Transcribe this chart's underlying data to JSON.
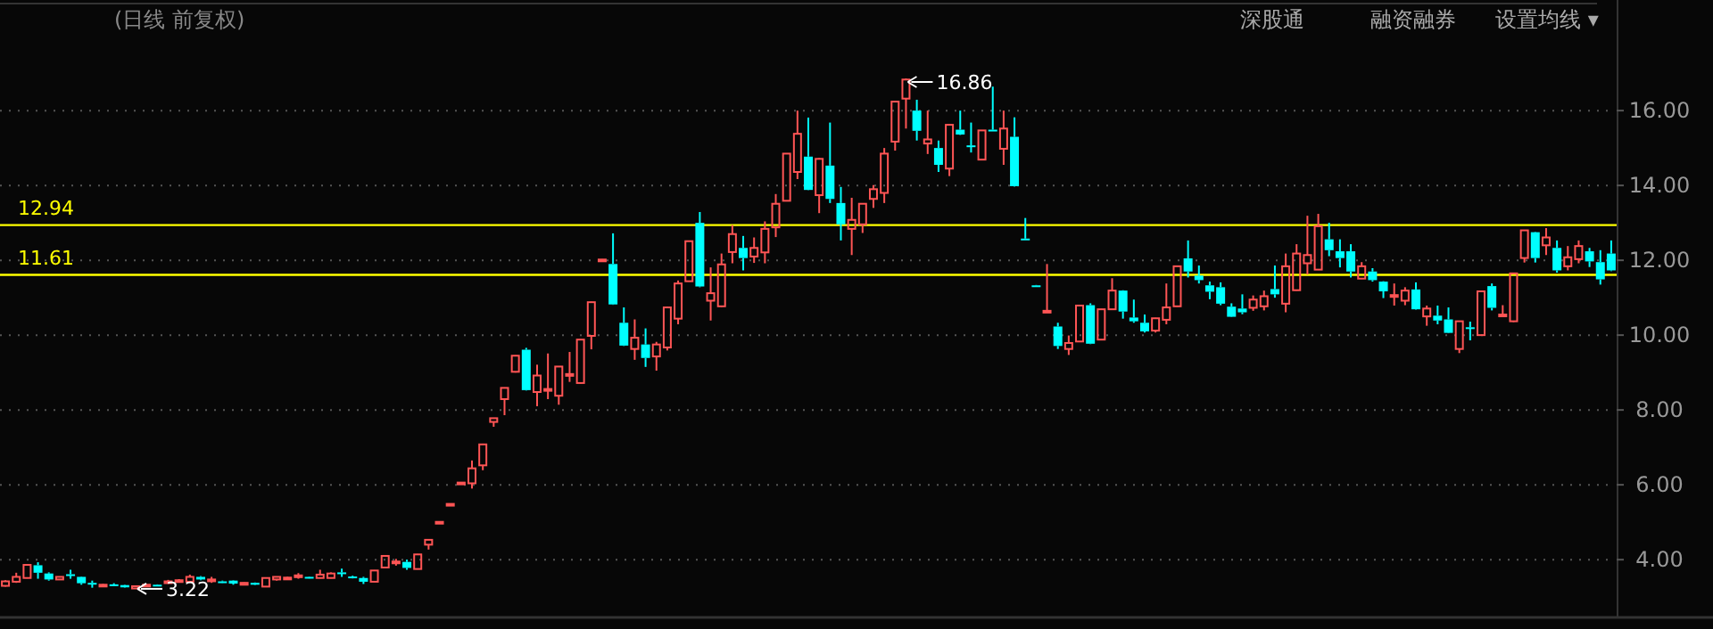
{
  "chart_data": {
    "type": "candlestick",
    "subtitle": "(日线 前复权)",
    "annotations": [
      "深股通",
      "融资融券",
      "设置均线 ▾",
      "16.86",
      "3.22"
    ],
    "categories": [
      null,
      null,
      null,
      null,
      null,
      null,
      null,
      null,
      null,
      null,
      null,
      null,
      null,
      null,
      null,
      null,
      null,
      null,
      null,
      null,
      null,
      null,
      null,
      null,
      null,
      null,
      null,
      null,
      null,
      null,
      null,
      null,
      null,
      null,
      null,
      null,
      null,
      null,
      null,
      null,
      null,
      null,
      null,
      null,
      null,
      null,
      null,
      null,
      null,
      null,
      null,
      null,
      null,
      null,
      null,
      null,
      null,
      null,
      null,
      null,
      null,
      null,
      null,
      null,
      null,
      null,
      null,
      null,
      null,
      null,
      null,
      null,
      null,
      null,
      null,
      null,
      null,
      null,
      null,
      null,
      null,
      null,
      null,
      null,
      null,
      null,
      null,
      null,
      null,
      null,
      null,
      null,
      null,
      null,
      null,
      null,
      null,
      null,
      null,
      null,
      null,
      null,
      null,
      null,
      null,
      null,
      null,
      null,
      null,
      null,
      null,
      null,
      null,
      null,
      null,
      null,
      null,
      null,
      null,
      null,
      null,
      null,
      null,
      null,
      null,
      null,
      null,
      null,
      null,
      null,
      null,
      null,
      null,
      null,
      null,
      null,
      null,
      null,
      null,
      null,
      null,
      null,
      null,
      null,
      null,
      null,
      null,
      null,
      null
    ],
    "ohlc": [
      [
        3.3,
        3.45,
        3.28,
        3.42
      ],
      [
        3.41,
        3.65,
        3.38,
        3.54
      ],
      [
        3.51,
        3.88,
        3.5,
        3.86
      ],
      [
        3.85,
        3.93,
        3.49,
        3.65
      ],
      [
        3.63,
        3.66,
        3.44,
        3.47
      ],
      [
        3.47,
        3.55,
        3.46,
        3.54
      ],
      [
        3.61,
        3.73,
        3.49,
        3.59
      ],
      [
        3.54,
        3.55,
        3.33,
        3.37
      ],
      [
        3.38,
        3.44,
        3.25,
        3.36
      ],
      [
        3.3,
        3.35,
        3.28,
        3.33
      ],
      [
        3.34,
        3.37,
        3.3,
        3.32
      ],
      [
        3.32,
        3.33,
        3.25,
        3.26
      ],
      [
        3.23,
        3.3,
        3.22,
        3.29
      ],
      [
        3.31,
        3.34,
        3.3,
        3.33
      ],
      [
        3.33,
        3.34,
        3.3,
        3.31
      ],
      [
        3.4,
        3.46,
        3.38,
        3.42
      ],
      [
        3.43,
        3.48,
        3.42,
        3.45
      ],
      [
        3.41,
        3.6,
        3.4,
        3.54
      ],
      [
        3.54,
        3.56,
        3.45,
        3.47
      ],
      [
        3.45,
        3.54,
        3.38,
        3.47
      ],
      [
        3.42,
        3.44,
        3.38,
        3.4
      ],
      [
        3.44,
        3.45,
        3.33,
        3.36
      ],
      [
        3.33,
        3.39,
        3.32,
        3.38
      ],
      [
        3.38,
        3.39,
        3.32,
        3.33
      ],
      [
        3.28,
        3.52,
        3.27,
        3.51
      ],
      [
        3.47,
        3.55,
        3.44,
        3.54
      ],
      [
        3.5,
        3.54,
        3.49,
        3.52
      ],
      [
        3.55,
        3.64,
        3.49,
        3.58
      ],
      [
        3.54,
        3.55,
        3.5,
        3.52
      ],
      [
        3.51,
        3.73,
        3.5,
        3.6
      ],
      [
        3.51,
        3.66,
        3.5,
        3.63
      ],
      [
        3.66,
        3.76,
        3.54,
        3.64
      ],
      [
        3.55,
        3.57,
        3.5,
        3.52
      ],
      [
        3.51,
        3.54,
        3.35,
        3.41
      ],
      [
        3.41,
        3.72,
        3.4,
        3.71
      ],
      [
        3.79,
        4.11,
        3.78,
        4.1
      ],
      [
        3.92,
        4.02,
        3.84,
        3.95
      ],
      [
        3.94,
        4.0,
        3.73,
        3.78
      ],
      [
        3.75,
        4.15,
        3.74,
        4.14
      ],
      [
        4.4,
        4.54,
        4.27,
        4.53
      ],
      [
        4.99,
        5.02,
        4.98,
        5.01
      ],
      [
        5.47,
        5.5,
        5.46,
        5.49
      ],
      [
        6.04,
        6.07,
        6.03,
        6.06
      ],
      [
        6.04,
        6.65,
        5.9,
        6.44
      ],
      [
        6.52,
        7.1,
        6.39,
        7.08
      ],
      [
        7.68,
        7.79,
        7.55,
        7.78
      ],
      [
        8.29,
        8.6,
        7.86,
        8.59
      ],
      [
        9.02,
        9.46,
        9.0,
        9.45
      ],
      [
        9.61,
        9.66,
        8.52,
        8.53
      ],
      [
        8.48,
        9.21,
        8.1,
        8.92
      ],
      [
        8.52,
        9.51,
        8.29,
        8.56
      ],
      [
        8.38,
        9.17,
        8.14,
        9.16
      ],
      [
        8.92,
        9.55,
        8.75,
        8.96
      ],
      [
        8.72,
        9.89,
        8.71,
        9.88
      ],
      [
        9.98,
        10.89,
        9.62,
        10.88
      ],
      [
        12.0,
        12.03,
        11.98,
        12.02
      ],
      [
        11.9,
        12.72,
        10.81,
        10.82
      ],
      [
        10.33,
        10.74,
        9.71,
        9.72
      ],
      [
        9.63,
        10.42,
        9.34,
        9.93
      ],
      [
        9.75,
        10.18,
        9.15,
        9.39
      ],
      [
        9.43,
        9.82,
        9.05,
        9.75
      ],
      [
        9.67,
        10.76,
        9.59,
        10.74
      ],
      [
        10.44,
        11.46,
        10.29,
        11.38
      ],
      [
        11.44,
        12.52,
        11.43,
        12.51
      ],
      [
        13.0,
        13.29,
        11.28,
        11.3
      ],
      [
        10.92,
        11.81,
        10.39,
        11.12
      ],
      [
        10.77,
        12.18,
        10.75,
        11.89
      ],
      [
        12.22,
        12.94,
        11.92,
        12.7
      ],
      [
        12.33,
        12.65,
        11.73,
        12.06
      ],
      [
        12.1,
        12.61,
        11.93,
        12.33
      ],
      [
        12.21,
        13.04,
        11.92,
        12.84
      ],
      [
        12.88,
        13.77,
        12.62,
        13.51
      ],
      [
        13.59,
        14.86,
        13.58,
        14.85
      ],
      [
        14.36,
        16.0,
        14.17,
        15.38
      ],
      [
        14.77,
        15.81,
        13.87,
        13.88
      ],
      [
        13.74,
        14.73,
        13.26,
        14.71
      ],
      [
        14.53,
        15.68,
        13.53,
        13.64
      ],
      [
        13.53,
        13.96,
        12.53,
        12.96
      ],
      [
        12.84,
        13.67,
        12.14,
        13.08
      ],
      [
        12.96,
        13.52,
        12.73,
        13.51
      ],
      [
        13.64,
        14.01,
        13.4,
        13.9
      ],
      [
        13.8,
        15.0,
        13.53,
        14.85
      ],
      [
        15.17,
        16.25,
        14.93,
        16.24
      ],
      [
        16.32,
        16.86,
        15.52,
        16.83
      ],
      [
        16.0,
        16.29,
        15.2,
        15.46
      ],
      [
        15.12,
        16.0,
        14.84,
        15.23
      ],
      [
        15.0,
        15.2,
        14.36,
        14.55
      ],
      [
        14.45,
        15.63,
        14.25,
        15.62
      ],
      [
        15.49,
        16.0,
        15.35,
        15.36
      ],
      [
        15.07,
        15.68,
        14.88,
        15.06
      ],
      [
        14.69,
        15.48,
        14.68,
        15.47
      ],
      [
        15.49,
        16.64,
        15.47,
        15.48
      ],
      [
        14.98,
        16.0,
        14.55,
        15.52
      ],
      [
        15.3,
        15.82,
        13.97,
        13.98
      ],
      [
        12.58,
        13.13,
        12.56,
        12.56
      ],
      [
        11.33,
        11.34,
        11.3,
        11.31
      ],
      [
        10.63,
        11.9,
        10.63,
        10.65
      ],
      [
        10.23,
        10.33,
        9.63,
        9.71
      ],
      [
        9.63,
        9.99,
        9.47,
        9.79
      ],
      [
        9.83,
        10.8,
        9.82,
        10.79
      ],
      [
        10.8,
        10.85,
        9.76,
        9.77
      ],
      [
        9.88,
        10.7,
        9.86,
        10.69
      ],
      [
        10.69,
        11.52,
        10.68,
        11.19
      ],
      [
        11.19,
        11.2,
        10.44,
        10.63
      ],
      [
        10.47,
        10.95,
        10.33,
        10.37
      ],
      [
        10.33,
        10.55,
        10.07,
        10.1
      ],
      [
        10.12,
        10.46,
        10.07,
        10.45
      ],
      [
        10.41,
        11.38,
        10.29,
        10.74
      ],
      [
        10.77,
        11.85,
        10.76,
        11.84
      ],
      [
        12.05,
        12.53,
        11.54,
        11.7
      ],
      [
        11.59,
        11.86,
        11.38,
        11.47
      ],
      [
        11.33,
        11.43,
        10.96,
        11.16
      ],
      [
        11.28,
        11.41,
        10.8,
        10.84
      ],
      [
        10.76,
        10.85,
        10.48,
        10.49
      ],
      [
        10.71,
        11.09,
        10.56,
        10.61
      ],
      [
        10.73,
        11.06,
        10.65,
        10.95
      ],
      [
        10.77,
        11.19,
        10.66,
        11.04
      ],
      [
        11.23,
        11.86,
        11.0,
        11.09
      ],
      [
        10.84,
        12.18,
        10.61,
        11.84
      ],
      [
        11.2,
        12.43,
        11.19,
        12.18
      ],
      [
        11.92,
        13.19,
        11.62,
        12.14
      ],
      [
        11.75,
        13.24,
        11.74,
        12.91
      ],
      [
        12.56,
        13.0,
        12.11,
        12.27
      ],
      [
        12.24,
        12.56,
        11.81,
        12.06
      ],
      [
        12.24,
        12.43,
        11.54,
        11.7
      ],
      [
        11.51,
        11.95,
        11.5,
        11.84
      ],
      [
        11.7,
        11.79,
        11.43,
        11.47
      ],
      [
        11.43,
        11.44,
        10.99,
        11.17
      ],
      [
        11.05,
        11.38,
        10.79,
        11.07
      ],
      [
        10.92,
        11.28,
        10.8,
        11.19
      ],
      [
        11.22,
        11.41,
        10.68,
        10.69
      ],
      [
        10.5,
        10.79,
        10.25,
        10.71
      ],
      [
        10.52,
        10.79,
        10.29,
        10.39
      ],
      [
        10.42,
        10.74,
        10.05,
        10.06
      ],
      [
        9.63,
        10.38,
        9.52,
        10.37
      ],
      [
        10.21,
        10.36,
        9.86,
        10.2
      ],
      [
        10.0,
        11.18,
        9.99,
        11.17
      ],
      [
        11.31,
        11.38,
        10.66,
        10.73
      ],
      [
        10.53,
        10.8,
        10.52,
        10.55
      ],
      [
        10.37,
        11.66,
        10.35,
        11.65
      ],
      [
        12.06,
        12.81,
        11.94,
        12.8
      ],
      [
        12.75,
        12.76,
        11.94,
        12.06
      ],
      [
        12.4,
        12.86,
        12.14,
        12.61
      ],
      [
        12.33,
        12.53,
        11.67,
        11.73
      ],
      [
        11.84,
        12.38,
        11.73,
        12.08
      ],
      [
        12.03,
        12.53,
        11.92,
        12.38
      ],
      [
        12.24,
        12.33,
        11.82,
        11.97
      ],
      [
        11.95,
        12.27,
        11.35,
        11.49
      ],
      [
        12.18,
        12.53,
        11.71,
        11.73
      ]
    ],
    "colors": [
      "#ff5555",
      "#ff5555",
      "#ff5555",
      "#00ffff",
      "#00ffff",
      "#ff5555",
      "#00ffff",
      "#00ffff",
      "#00ffff",
      "#ff5555",
      "#00ffff",
      "#00ffff",
      "#ff5555",
      "#ff5555",
      "#00ffff",
      "#ff5555",
      "#ff5555",
      "#ff5555",
      "#00ffff",
      "#ff5555",
      "#00ffff",
      "#00ffff",
      "#ff5555",
      "#00ffff",
      "#ff5555",
      "#ff5555",
      "#ff5555",
      "#ff5555",
      "#00ffff",
      "#ff5555",
      "#ff5555",
      "#00ffff",
      "#00ffff",
      "#00ffff",
      "#ff5555",
      "#ff5555",
      "#ff5555",
      "#00ffff",
      "#ff5555",
      "#ff5555",
      "#ff5555",
      "#ff5555",
      "#ff5555",
      "#ff5555",
      "#ff5555",
      "#ff5555",
      "#ff5555",
      "#ff5555",
      "#00ffff",
      "#ff5555",
      "#ff5555",
      "#ff5555",
      "#ff5555",
      "#ff5555",
      "#ff5555",
      "#ff5555",
      "#00ffff",
      "#00ffff",
      "#ff5555",
      "#00ffff",
      "#ff5555",
      "#ff5555",
      "#ff5555",
      "#ff5555",
      "#00ffff",
      "#ff5555",
      "#ff5555",
      "#ff5555",
      "#00ffff",
      "#ff5555",
      "#ff5555",
      "#ff5555",
      "#ff5555",
      "#ff5555",
      "#00ffff",
      "#ff5555",
      "#00ffff",
      "#00ffff",
      "#ff5555",
      "#ff5555",
      "#ff5555",
      "#ff5555",
      "#ff5555",
      "#ff5555",
      "#00ffff",
      "#ff5555",
      "#00ffff",
      "#ff5555",
      "#00ffff",
      "#00ffff",
      "#ff5555",
      "#00ffff",
      "#ff5555",
      "#00ffff",
      "#00ffff",
      "#00ffff",
      "#ff5555",
      "#00ffff",
      "#ff5555",
      "#ff5555",
      "#00ffff",
      "#ff5555",
      "#ff5555",
      "#00ffff",
      "#00ffff",
      "#00ffff",
      "#ff5555",
      "#ff5555",
      "#ff5555",
      "#00ffff",
      "#00ffff",
      "#00ffff",
      "#00ffff",
      "#00ffff",
      "#00ffff",
      "#ff5555",
      "#ff5555",
      "#00ffff",
      "#ff5555",
      "#ff5555",
      "#ff5555",
      "#ff5555",
      "#00ffff",
      "#00ffff",
      "#00ffff",
      "#ff5555",
      "#00ffff",
      "#00ffff",
      "#ff5555",
      "#ff5555",
      "#00ffff",
      "#ff5555",
      "#00ffff",
      "#00ffff",
      "#ff5555",
      "#00ffff",
      "#ff5555",
      "#00ffff",
      "#ff5555",
      "#ff5555",
      "#ff5555",
      "#00ffff",
      "#ff5555",
      "#00ffff",
      "#ff5555",
      "#ff5555",
      "#00ffff",
      "#00ffff",
      "#00ffff"
    ],
    "ylim": [
      2.48,
      18.86
    ],
    "yticks": [
      {
        "value": 4,
        "label": "4.00"
      },
      {
        "value": 6,
        "label": "6.00"
      },
      {
        "value": 8,
        "label": "8.00"
      },
      {
        "value": 10,
        "label": "10.00"
      },
      {
        "value": 12,
        "label": "12.00"
      },
      {
        "value": 14,
        "label": "14.00"
      },
      {
        "value": 16,
        "label": "16.00"
      }
    ],
    "tick_labels": "y",
    "grid": "y",
    "ref_lines": [
      {
        "axis": "y",
        "value": 12.94,
        "label": "12.94",
        "color": "#ffff00"
      },
      {
        "axis": "y",
        "value": 11.61,
        "label": "11.61",
        "color": "#ffff00"
      }
    ]
  }
}
